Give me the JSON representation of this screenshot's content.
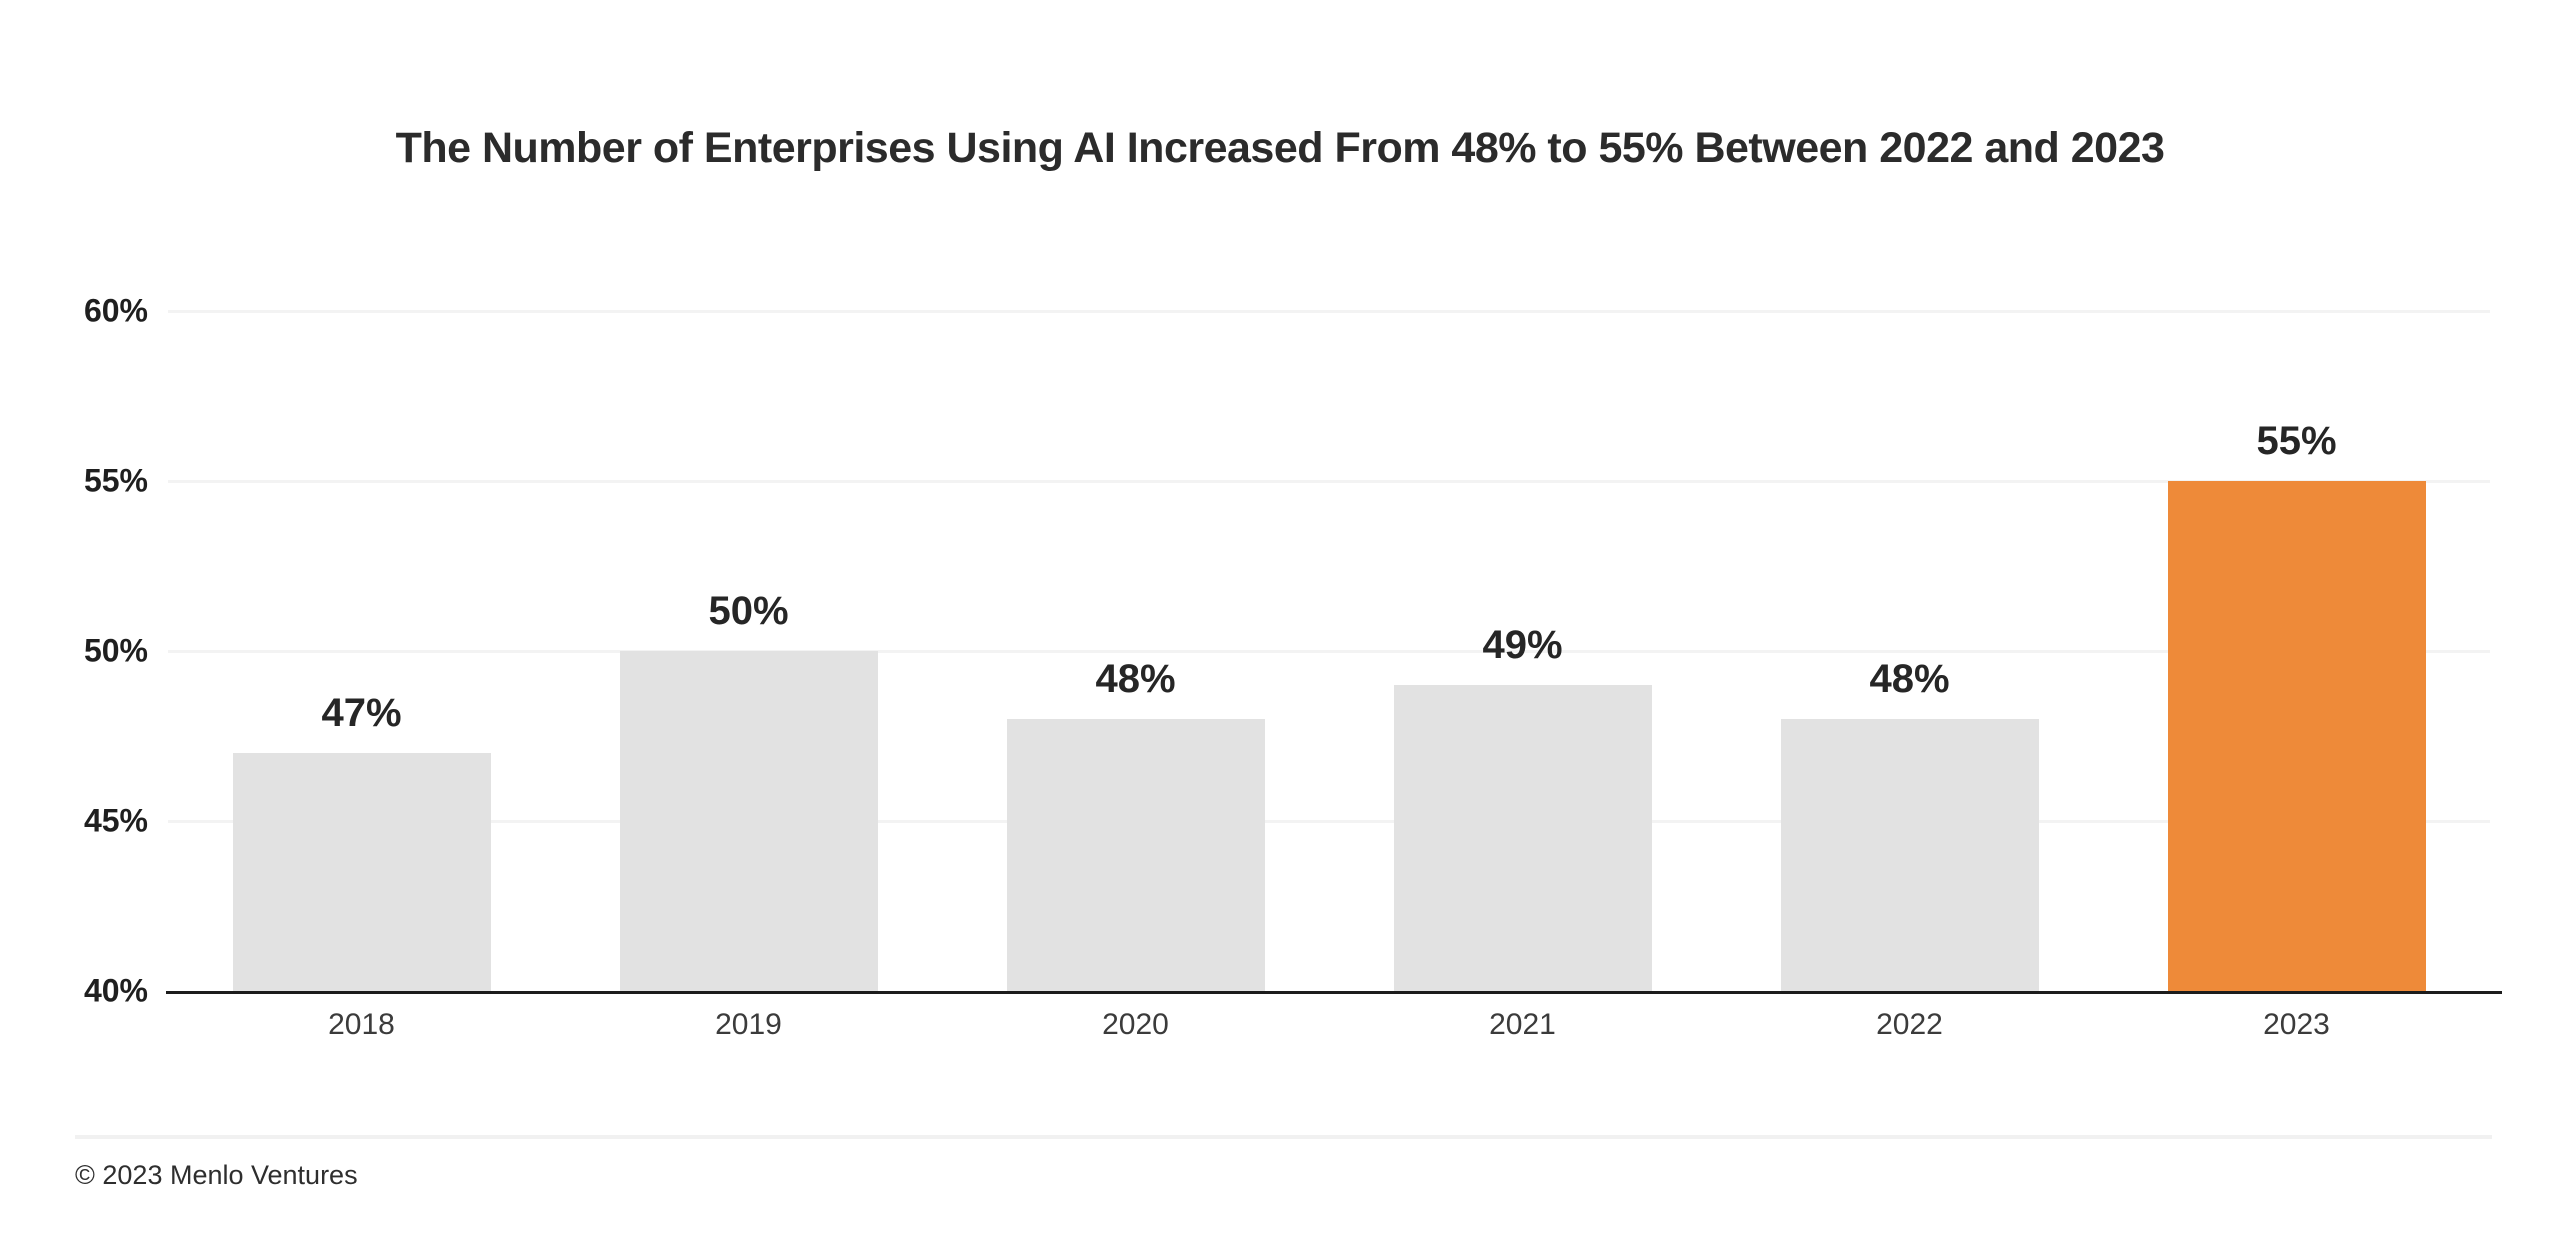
{
  "title": "The Number of Enterprises Using AI Increased From 48% to 55% Between 2022 and 2023",
  "footer": {
    "copyright": "© 2023 Menlo Ventures"
  },
  "colors": {
    "background": "#ffffff",
    "bar_default": "#e2e2e2",
    "bar_highlight": "#ee8a39",
    "gridline": "#f3f3f3",
    "axis_line": "#1c1c1c",
    "title_text": "#2b2b2b",
    "value_label_text": "#262626",
    "ytick_text": "#1f1f1f",
    "xtick_text": "#3b3b3b",
    "footer_divider": "#f1f1f1",
    "footer_text": "#2e2e2e"
  },
  "chart_data": {
    "type": "bar",
    "title": "The Number of Enterprises Using AI Increased From 48% to 55% Between 2022 and 2023",
    "categories": [
      "2018",
      "2019",
      "2020",
      "2021",
      "2022",
      "2023"
    ],
    "values": [
      47,
      50,
      48,
      49,
      48,
      55
    ],
    "value_labels": [
      "47%",
      "50%",
      "48%",
      "49%",
      "48%",
      "55%"
    ],
    "highlight_index": 5,
    "xlabel": "",
    "ylabel": "",
    "ylim": [
      40,
      60
    ],
    "yticks": [
      40,
      45,
      50,
      55,
      60
    ],
    "ytick_labels": [
      "40%",
      "45%",
      "50%",
      "55%",
      "60%"
    ],
    "grid": "horizontal-only",
    "legend": "none",
    "source_note": "© 2023 Menlo Ventures"
  }
}
